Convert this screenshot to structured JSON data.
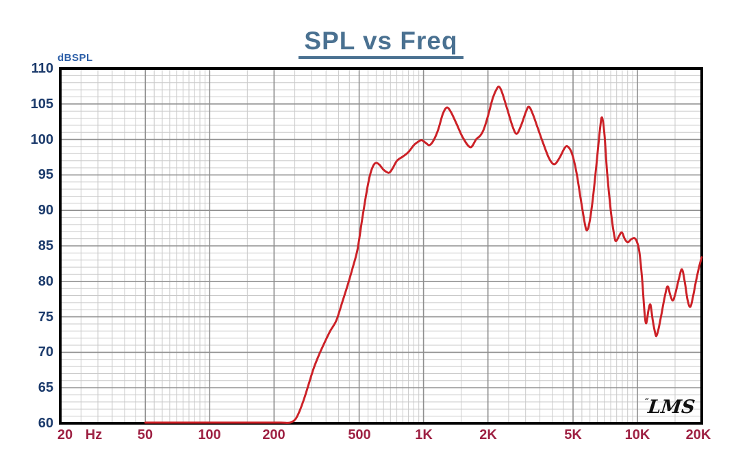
{
  "chart_data": {
    "type": "line",
    "title": "SPL vs Freq",
    "y_axis_unit": "dBSPL",
    "x_axis_unit": "Hz",
    "x_scale": "log",
    "xlim": [
      20,
      20000
    ],
    "ylim": [
      60,
      110
    ],
    "y_major_step": 5,
    "y_minor_step": 1,
    "grid": true,
    "legend": false,
    "x_major_ticks": [
      {
        "f": 20,
        "label": "20"
      },
      {
        "f": 50,
        "label": "50"
      },
      {
        "f": 100,
        "label": "100"
      },
      {
        "f": 200,
        "label": "200"
      },
      {
        "f": 500,
        "label": "500"
      },
      {
        "f": 1000,
        "label": "1K"
      },
      {
        "f": 2000,
        "label": "2K"
      },
      {
        "f": 5000,
        "label": "5K"
      },
      {
        "f": 10000,
        "label": "10K"
      },
      {
        "f": 20000,
        "label": "20K"
      }
    ],
    "x_minor_grid_ranges": [
      [
        20,
        100,
        5
      ],
      [
        100,
        1000,
        50
      ],
      [
        1000,
        10000,
        500
      ],
      [
        10000,
        20000,
        5000
      ]
    ],
    "series": [
      {
        "name": "SPL",
        "color": "#cc2127",
        "points": [
          [
            50,
            60.1
          ],
          [
            80,
            60.1
          ],
          [
            120,
            60.1
          ],
          [
            170,
            60.1
          ],
          [
            215,
            60.1
          ],
          [
            238,
            60.1
          ],
          [
            252,
            60.6
          ],
          [
            263,
            61.7
          ],
          [
            276,
            63.4
          ],
          [
            291,
            65.6
          ],
          [
            306,
            67.7
          ],
          [
            325,
            69.7
          ],
          [
            346,
            71.5
          ],
          [
            366,
            73.0
          ],
          [
            391,
            74.5
          ],
          [
            416,
            77.0
          ],
          [
            441,
            79.4
          ],
          [
            466,
            81.9
          ],
          [
            491,
            84.5
          ],
          [
            516,
            88.7
          ],
          [
            541,
            92.5
          ],
          [
            562,
            95.0
          ],
          [
            582,
            96.3
          ],
          [
            601,
            96.7
          ],
          [
            623,
            96.4
          ],
          [
            651,
            95.7
          ],
          [
            688,
            95.3
          ],
          [
            716,
            95.9
          ],
          [
            751,
            97.0
          ],
          [
            801,
            97.6
          ],
          [
            849,
            98.2
          ],
          [
            901,
            99.2
          ],
          [
            946,
            99.7
          ],
          [
            981,
            99.9
          ],
          [
            1026,
            99.5
          ],
          [
            1066,
            99.2
          ],
          [
            1116,
            99.9
          ],
          [
            1171,
            101.4
          ],
          [
            1231,
            103.6
          ],
          [
            1286,
            104.5
          ],
          [
            1346,
            103.8
          ],
          [
            1431,
            102.1
          ],
          [
            1531,
            100.2
          ],
          [
            1656,
            98.9
          ],
          [
            1761,
            100.0
          ],
          [
            1836,
            100.5
          ],
          [
            1906,
            101.3
          ],
          [
            2001,
            103.3
          ],
          [
            2106,
            105.8
          ],
          [
            2206,
            107.2
          ],
          [
            2261,
            107.4
          ],
          [
            2331,
            106.6
          ],
          [
            2461,
            104.3
          ],
          [
            2611,
            101.8
          ],
          [
            2726,
            100.8
          ],
          [
            2861,
            102.0
          ],
          [
            3011,
            103.9
          ],
          [
            3111,
            104.6
          ],
          [
            3241,
            103.6
          ],
          [
            3421,
            101.6
          ],
          [
            3631,
            99.4
          ],
          [
            3871,
            97.3
          ],
          [
            4091,
            96.5
          ],
          [
            4321,
            97.4
          ],
          [
            4571,
            98.8
          ],
          [
            4721,
            99.0
          ],
          [
            4931,
            98.1
          ],
          [
            5171,
            95.6
          ],
          [
            5421,
            91.8
          ],
          [
            5681,
            88.1
          ],
          [
            5811,
            87.2
          ],
          [
            5961,
            88.2
          ],
          [
            6171,
            91.3
          ],
          [
            6421,
            96.2
          ],
          [
            6681,
            101.4
          ],
          [
            6831,
            103.1
          ],
          [
            7011,
            100.8
          ],
          [
            7221,
            95.3
          ],
          [
            7521,
            89.8
          ],
          [
            7811,
            86.3
          ],
          [
            7961,
            85.7
          ],
          [
            8211,
            86.4
          ],
          [
            8461,
            86.9
          ],
          [
            8721,
            86.0
          ],
          [
            9011,
            85.5
          ],
          [
            9321,
            85.9
          ],
          [
            9661,
            86.1
          ],
          [
            9911,
            85.7
          ],
          [
            10211,
            84.2
          ],
          [
            10521,
            80.3
          ],
          [
            10811,
            75.4
          ],
          [
            11011,
            74.1
          ],
          [
            11261,
            75.9
          ],
          [
            11511,
            76.7
          ],
          [
            11811,
            74.4
          ],
          [
            12161,
            72.5
          ],
          [
            12311,
            72.4
          ],
          [
            12561,
            73.3
          ],
          [
            12961,
            75.4
          ],
          [
            13441,
            77.9
          ],
          [
            13841,
            79.3
          ],
          [
            14241,
            78.1
          ],
          [
            14641,
            77.3
          ],
          [
            15061,
            78.3
          ],
          [
            15651,
            80.4
          ],
          [
            16161,
            81.7
          ],
          [
            16661,
            79.9
          ],
          [
            17161,
            77.4
          ],
          [
            17661,
            76.4
          ],
          [
            18161,
            77.7
          ],
          [
            18761,
            79.9
          ],
          [
            19461,
            82.1
          ],
          [
            20000,
            83.4
          ]
        ]
      }
    ],
    "watermark": {
      "tick": "″",
      "text": "LMS"
    },
    "colors": {
      "title": "#4a7191",
      "y_unit_label": "#2d5fa8",
      "y_tick_labels": "#1b3a6b",
      "x_tick_labels": "#9e2143",
      "grid_major": "#8f8f8f",
      "grid_minor": "#c9c9c9",
      "frame": "#000000",
      "curve": "#cc2127",
      "watermark": "#111111",
      "background": "#ffffff"
    }
  }
}
